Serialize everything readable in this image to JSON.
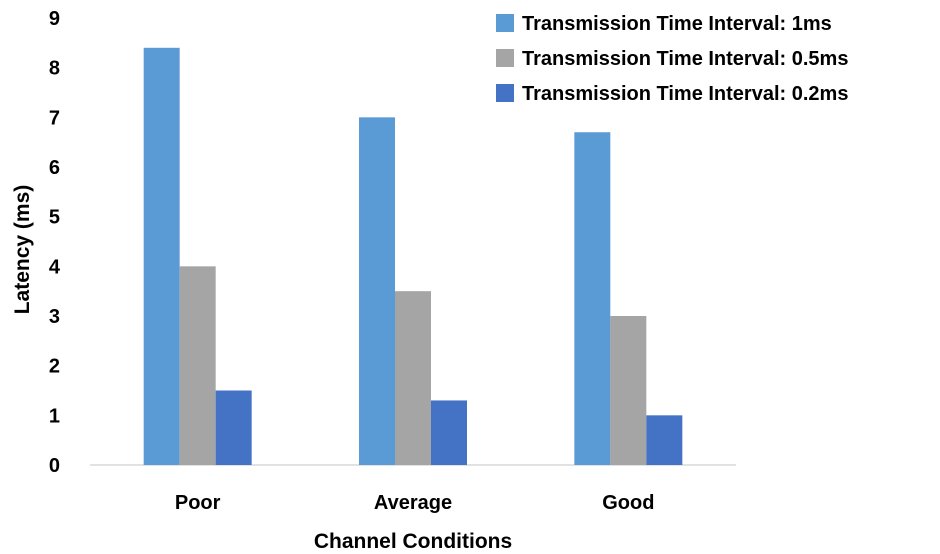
{
  "chart_data": {
    "type": "bar",
    "categories": [
      "Poor",
      "Average",
      "Good"
    ],
    "series": [
      {
        "name": "Transmission Time Interval: 1ms",
        "values": [
          8.4,
          7.0,
          6.7
        ],
        "color": "#5B9BD5"
      },
      {
        "name": "Transmission Time Interval: 0.5ms",
        "values": [
          4.0,
          3.5,
          3.0
        ],
        "color": "#A5A5A5"
      },
      {
        "name": "Transmission Time Interval: 0.2ms",
        "values": [
          1.5,
          1.3,
          1.0
        ],
        "color": "#4472C4"
      }
    ],
    "title": "",
    "xlabel": "Channel Conditions",
    "ylabel": "Latency (ms)",
    "ylim": [
      0,
      9
    ],
    "yticks": [
      0,
      1,
      2,
      3,
      4,
      5,
      6,
      7,
      8,
      9
    ],
    "grid": false,
    "legend_position": "top-right"
  }
}
